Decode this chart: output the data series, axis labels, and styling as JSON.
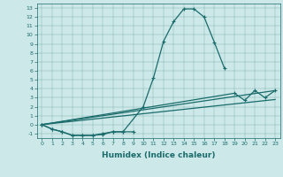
{
  "xlabel": "Humidex (Indice chaleur)",
  "bg_color": "#cde8e8",
  "line_color": "#1a6b6b",
  "xlim": [
    -0.5,
    23.5
  ],
  "ylim": [
    -1.5,
    13.5
  ],
  "xticks": [
    0,
    1,
    2,
    3,
    4,
    5,
    6,
    7,
    8,
    9,
    10,
    11,
    12,
    13,
    14,
    15,
    16,
    17,
    18,
    19,
    20,
    21,
    22,
    23
  ],
  "yticks": [
    -1,
    0,
    1,
    2,
    3,
    4,
    5,
    6,
    7,
    8,
    9,
    10,
    11,
    12,
    13
  ],
  "line1_x": [
    0,
    1,
    2,
    3,
    4,
    5,
    6,
    7,
    8,
    10,
    11,
    12,
    13,
    14,
    15,
    16,
    17,
    18
  ],
  "line1_y": [
    0,
    -0.5,
    -0.8,
    -1.2,
    -1.2,
    -1.2,
    -1.1,
    -0.8,
    -0.8,
    2.0,
    5.2,
    9.3,
    11.5,
    12.9,
    12.9,
    12.0,
    9.2,
    6.3
  ],
  "line2_x": [
    0,
    1,
    2,
    3,
    4,
    5,
    6,
    7,
    8,
    9
  ],
  "line2_y": [
    0,
    -0.5,
    -0.8,
    -1.2,
    -1.2,
    -1.2,
    -1.0,
    -0.8,
    -0.8,
    -0.8
  ],
  "line3_x": [
    0,
    23
  ],
  "line3_y": [
    0,
    3.8
  ],
  "line4_x": [
    0,
    19,
    20,
    21,
    22,
    23
  ],
  "line4_y": [
    0,
    3.5,
    2.7,
    3.8,
    3.0,
    3.8
  ],
  "line5_x": [
    0,
    23
  ],
  "line5_y": [
    0,
    2.8
  ]
}
